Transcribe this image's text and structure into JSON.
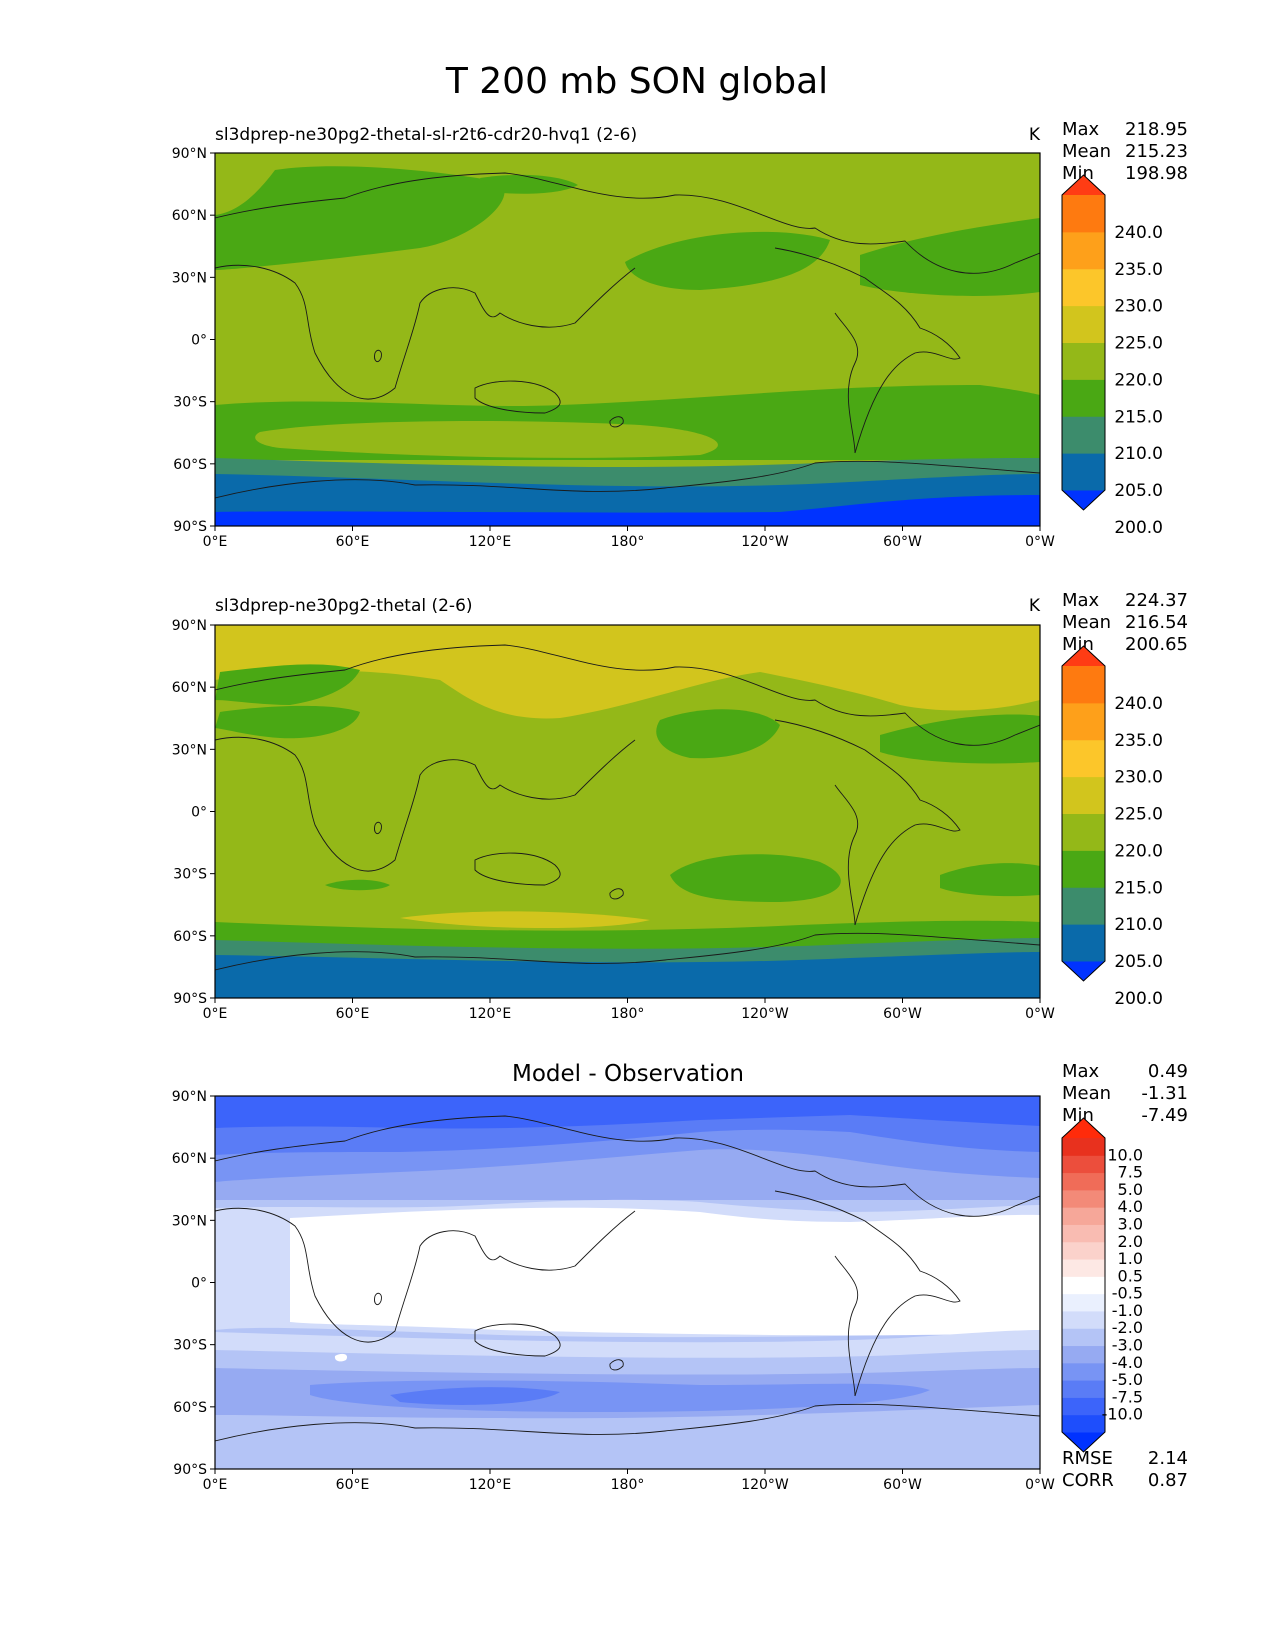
{
  "figure": {
    "title": "T 200 mb SON global"
  },
  "colors": {
    "abs_levels": [
      "#0033ff",
      "#0a6aaa",
      "#3c8c6c",
      "#4aa814",
      "#94b818",
      "#d2c51d",
      "#fcc62a",
      "#fea01a",
      "#fe7a10",
      "#ff3c14"
    ],
    "diff_levels": [
      "#0032ff",
      "#1e4efc",
      "#3c64fa",
      "#5a7cf6",
      "#7894f4",
      "#96aaf2",
      "#b4c4f6",
      "#d2dcfa",
      "#eaf0fe",
      "#ffffff",
      "#fde8e4",
      "#fbd2cb",
      "#f9bcb2",
      "#f6a799",
      "#f38a78",
      "#f06c58",
      "#ec4e3c",
      "#e8311e",
      "#ff2b0a"
    ],
    "coastline": "#1a1a1a"
  },
  "chart_data": [
    {
      "type": "contourf-map",
      "title_left": "sl3dprep-ne30pg2-thetal-sl-r2t6-cdr20-hvq1 (2-6)",
      "units": "K",
      "stats": {
        "max_label": "Max",
        "max": "218.95",
        "mean_label": "Mean",
        "mean": "215.23",
        "min_label": "Min",
        "min": "198.98"
      },
      "xticks": [
        "0°E",
        "60°E",
        "120°E",
        "180°",
        "120°W",
        "60°W",
        "0°W"
      ],
      "yticks": [
        "90°N",
        "60°N",
        "30°N",
        "0°",
        "30°S",
        "60°S",
        "90°S"
      ],
      "xlim": [
        0,
        360
      ],
      "ylim": [
        -90,
        90
      ],
      "colorbar": {
        "labels": [
          "240.0",
          "235.0",
          "230.0",
          "225.0",
          "220.0",
          "215.0",
          "210.0",
          "205.0",
          "200.0"
        ],
        "extend": "both"
      }
    },
    {
      "type": "contourf-map",
      "title_left": "sl3dprep-ne30pg2-thetal (2-6)",
      "units": "K",
      "stats": {
        "max_label": "Max",
        "max": "224.37",
        "mean_label": "Mean",
        "mean": "216.54",
        "min_label": "Min",
        "min": "200.65"
      },
      "xticks": [
        "0°E",
        "60°E",
        "120°E",
        "180°",
        "120°W",
        "60°W",
        "0°W"
      ],
      "yticks": [
        "90°N",
        "60°N",
        "30°N",
        "0°",
        "30°S",
        "60°S",
        "90°S"
      ],
      "xlim": [
        0,
        360
      ],
      "ylim": [
        -90,
        90
      ],
      "colorbar": {
        "labels": [
          "240.0",
          "235.0",
          "230.0",
          "225.0",
          "220.0",
          "215.0",
          "210.0",
          "205.0",
          "200.0"
        ],
        "extend": "both"
      }
    },
    {
      "type": "contourf-map",
      "title_center": "Model - Observation",
      "stats": {
        "max_label": "Max",
        "max": "0.49",
        "mean_label": "Mean",
        "mean": "-1.31",
        "min_label": "Min",
        "min": "-7.49"
      },
      "xticks": [
        "0°E",
        "60°E",
        "120°E",
        "180°",
        "120°W",
        "60°W",
        "0°W"
      ],
      "yticks": [
        "90°N",
        "60°N",
        "30°N",
        "0°",
        "30°S",
        "60°S",
        "90°S"
      ],
      "xlim": [
        0,
        360
      ],
      "ylim": [
        -90,
        90
      ],
      "colorbar": {
        "labels": [
          "10.0",
          "7.5",
          "5.0",
          "4.0",
          "3.0",
          "2.0",
          "1.0",
          "0.5",
          "-0.5",
          "-1.0",
          "-2.0",
          "-3.0",
          "-4.0",
          "-5.0",
          "-7.5",
          "-10.0"
        ],
        "extend": "both"
      },
      "metrics": {
        "rmse_label": "RMSE",
        "rmse": "2.14",
        "corr_label": "CORR",
        "corr": "0.87"
      }
    }
  ]
}
